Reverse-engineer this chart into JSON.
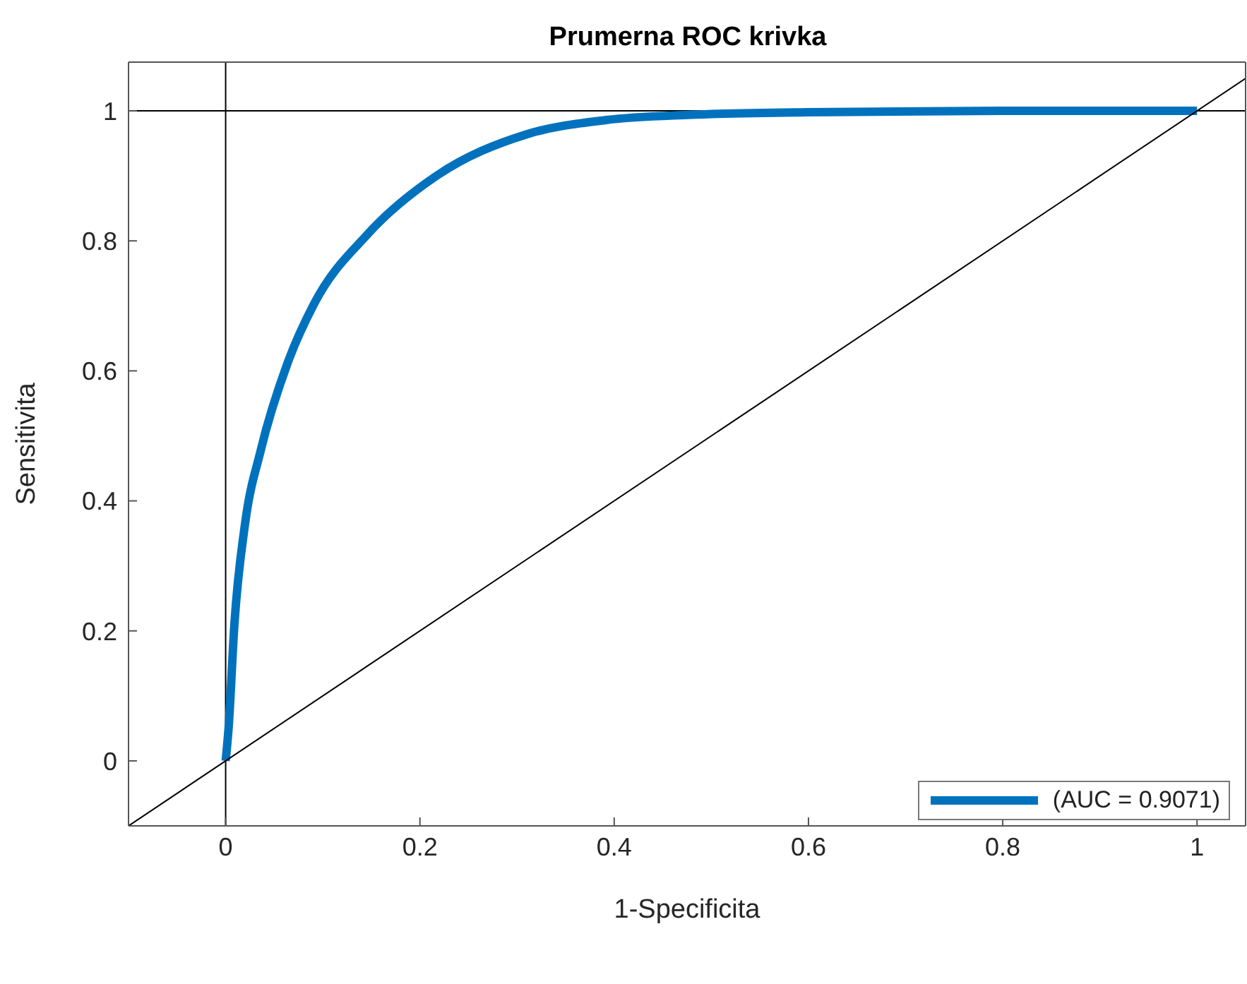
{
  "chart_data": {
    "type": "line",
    "title": "Prumerna ROC krivka",
    "xlabel": "1-Specificita",
    "ylabel": "Sensitivita",
    "xlim": [
      -0.1,
      1.05
    ],
    "ylim": [
      -0.1,
      1.075
    ],
    "xticks": [
      0,
      0.2,
      0.4,
      0.6,
      0.8,
      1
    ],
    "yticks": [
      0,
      0.2,
      0.4,
      0.6,
      0.8,
      1
    ],
    "series": [
      {
        "name": "(AUC = 0.9071)",
        "color": "#0072bd",
        "x": [
          0,
          0.003,
          0.009,
          0.02,
          0.036,
          0.064,
          0.091,
          0.146,
          0.217,
          0.31,
          0.392,
          0.48,
          0.6,
          0.8,
          1
        ],
        "values": [
          0,
          0.05,
          0.21,
          0.365,
          0.477,
          0.613,
          0.703,
          0.81,
          0.9,
          0.964,
          0.986,
          0.994,
          0.998,
          1,
          1
        ]
      },
      {
        "type": "line",
        "color": "#000000",
        "x": [
          -0.1,
          1.05
        ],
        "values": [
          -0.1,
          1.05
        ]
      }
    ],
    "ref_lines": [
      {
        "axis": "x",
        "value": 0,
        "color": "#000000"
      },
      {
        "axis": "y",
        "value": 1,
        "color": "#000000"
      }
    ],
    "legend": "bottom right",
    "marker": "none",
    "line_style": "solid"
  }
}
